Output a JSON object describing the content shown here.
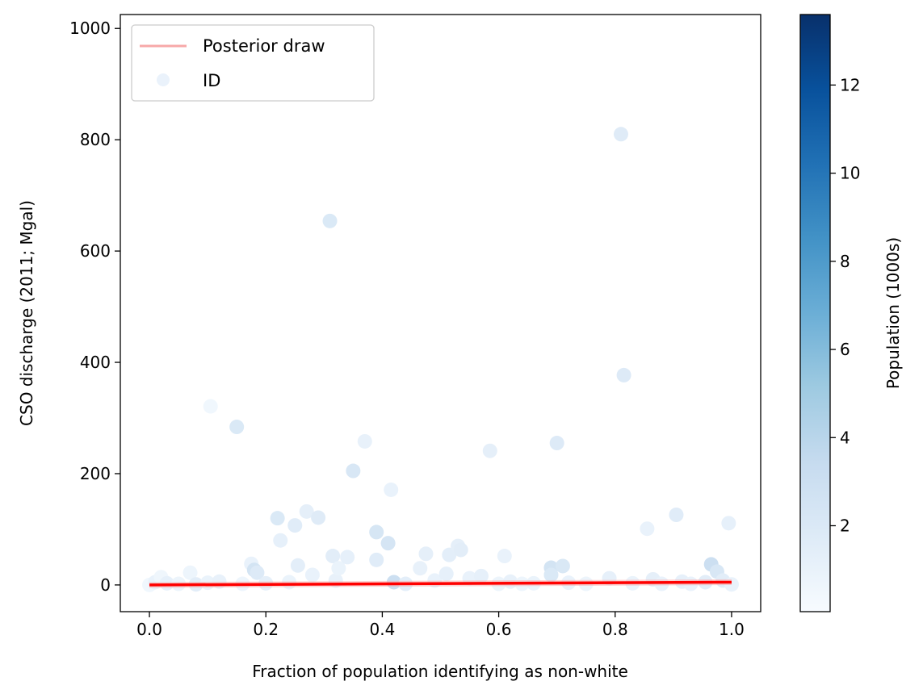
{
  "chart_data": {
    "type": "scatter",
    "title": "",
    "xlabel": "Fraction of population identifying as non-white",
    "ylabel": "CSO discharge (2011; Mgal)",
    "xlim": [
      -0.05,
      1.05
    ],
    "ylim": [
      -48,
      1025
    ],
    "xticks": [
      0.0,
      0.2,
      0.4,
      0.6,
      0.8,
      1.0
    ],
    "xtick_labels": [
      "0.0",
      "0.2",
      "0.4",
      "0.6",
      "0.8",
      "1.0"
    ],
    "yticks": [
      0,
      200,
      400,
      600,
      800,
      1000
    ],
    "ytick_labels": [
      "0",
      "200",
      "400",
      "600",
      "800",
      "1000"
    ],
    "grid": false,
    "legend": {
      "placement": "top-left",
      "entries": [
        {
          "label": "Posterior draw",
          "type": "line",
          "color": "#f7a8a8"
        },
        {
          "label": "ID",
          "type": "marker",
          "color": "#eaf2fb"
        }
      ]
    },
    "colorbar": {
      "label": "Population (1000s)",
      "range": [
        0.05,
        13.6
      ],
      "ticks": [
        2,
        4,
        6,
        8,
        10,
        12
      ],
      "tick_labels": [
        "2",
        "4",
        "6",
        "8",
        "10",
        "12"
      ],
      "colormap": "Blues",
      "colors": [
        "#f7fbff",
        "#deebf7",
        "#c6dbef",
        "#9ecae1",
        "#6baed6",
        "#4292c6",
        "#2171b5",
        "#08519c",
        "#08306b"
      ]
    },
    "posterior_line": {
      "color": "#ff0000",
      "x": [
        0.0,
        1.0
      ],
      "y": [
        0,
        5
      ]
    },
    "points": [
      {
        "x": 0.0,
        "y": 0,
        "pop": 0.5
      },
      {
        "x": 0.01,
        "y": 5,
        "pop": 1.0
      },
      {
        "x": 0.02,
        "y": 14,
        "pop": 0.6
      },
      {
        "x": 0.03,
        "y": 3,
        "pop": 1.2
      },
      {
        "x": 0.05,
        "y": 2,
        "pop": 0.8
      },
      {
        "x": 0.07,
        "y": 22,
        "pop": 0.7
      },
      {
        "x": 0.08,
        "y": 1,
        "pop": 1.5
      },
      {
        "x": 0.1,
        "y": 4,
        "pop": 0.9
      },
      {
        "x": 0.105,
        "y": 321,
        "pop": 0.5
      },
      {
        "x": 0.12,
        "y": 6,
        "pop": 1.1
      },
      {
        "x": 0.15,
        "y": 284,
        "pop": 2.0
      },
      {
        "x": 0.16,
        "y": 2,
        "pop": 0.7
      },
      {
        "x": 0.175,
        "y": 38,
        "pop": 1.0
      },
      {
        "x": 0.18,
        "y": 27,
        "pop": 2.5
      },
      {
        "x": 0.185,
        "y": 22,
        "pop": 1.8
      },
      {
        "x": 0.2,
        "y": 3,
        "pop": 1.3
      },
      {
        "x": 0.22,
        "y": 120,
        "pop": 2.0
      },
      {
        "x": 0.225,
        "y": 80,
        "pop": 1.2
      },
      {
        "x": 0.24,
        "y": 5,
        "pop": 0.9
      },
      {
        "x": 0.25,
        "y": 107,
        "pop": 1.6
      },
      {
        "x": 0.255,
        "y": 35,
        "pop": 1.4
      },
      {
        "x": 0.27,
        "y": 132,
        "pop": 1.3
      },
      {
        "x": 0.28,
        "y": 18,
        "pop": 1.0
      },
      {
        "x": 0.29,
        "y": 121,
        "pop": 1.7
      },
      {
        "x": 0.31,
        "y": 654,
        "pop": 2.0
      },
      {
        "x": 0.315,
        "y": 52,
        "pop": 1.5
      },
      {
        "x": 0.32,
        "y": 8,
        "pop": 1.1
      },
      {
        "x": 0.325,
        "y": 30,
        "pop": 0.9
      },
      {
        "x": 0.34,
        "y": 50,
        "pop": 1.2
      },
      {
        "x": 0.35,
        "y": 205,
        "pop": 2.2
      },
      {
        "x": 0.37,
        "y": 258,
        "pop": 1.1
      },
      {
        "x": 0.39,
        "y": 95,
        "pop": 2.3
      },
      {
        "x": 0.39,
        "y": 45,
        "pop": 1.6
      },
      {
        "x": 0.41,
        "y": 75,
        "pop": 2.4
      },
      {
        "x": 0.415,
        "y": 171,
        "pop": 1.0
      },
      {
        "x": 0.42,
        "y": 5,
        "pop": 3.0
      },
      {
        "x": 0.44,
        "y": 2,
        "pop": 1.4
      },
      {
        "x": 0.465,
        "y": 30,
        "pop": 1.1
      },
      {
        "x": 0.475,
        "y": 56,
        "pop": 1.3
      },
      {
        "x": 0.49,
        "y": 8,
        "pop": 1.0
      },
      {
        "x": 0.51,
        "y": 20,
        "pop": 1.2
      },
      {
        "x": 0.515,
        "y": 54,
        "pop": 1.4
      },
      {
        "x": 0.53,
        "y": 70,
        "pop": 1.3
      },
      {
        "x": 0.535,
        "y": 63,
        "pop": 1.5
      },
      {
        "x": 0.55,
        "y": 12,
        "pop": 1.0
      },
      {
        "x": 0.57,
        "y": 16,
        "pop": 1.2
      },
      {
        "x": 0.585,
        "y": 241,
        "pop": 1.3
      },
      {
        "x": 0.6,
        "y": 2,
        "pop": 0.8
      },
      {
        "x": 0.61,
        "y": 52,
        "pop": 1.0
      },
      {
        "x": 0.62,
        "y": 6,
        "pop": 1.1
      },
      {
        "x": 0.64,
        "y": 2,
        "pop": 0.7
      },
      {
        "x": 0.66,
        "y": 3,
        "pop": 0.9
      },
      {
        "x": 0.69,
        "y": 31,
        "pop": 2.5
      },
      {
        "x": 0.69,
        "y": 18,
        "pop": 2.0
      },
      {
        "x": 0.7,
        "y": 255,
        "pop": 1.8
      },
      {
        "x": 0.71,
        "y": 34,
        "pop": 2.1
      },
      {
        "x": 0.72,
        "y": 4,
        "pop": 1.0
      },
      {
        "x": 0.75,
        "y": 2,
        "pop": 0.8
      },
      {
        "x": 0.79,
        "y": 12,
        "pop": 1.2
      },
      {
        "x": 0.81,
        "y": 810,
        "pop": 1.7
      },
      {
        "x": 0.815,
        "y": 377,
        "pop": 1.8
      },
      {
        "x": 0.83,
        "y": 3,
        "pop": 0.9
      },
      {
        "x": 0.855,
        "y": 101,
        "pop": 1.0
      },
      {
        "x": 0.865,
        "y": 10,
        "pop": 1.3
      },
      {
        "x": 0.88,
        "y": 2,
        "pop": 1.0
      },
      {
        "x": 0.905,
        "y": 126,
        "pop": 1.6
      },
      {
        "x": 0.915,
        "y": 6,
        "pop": 1.2
      },
      {
        "x": 0.93,
        "y": 2,
        "pop": 1.0
      },
      {
        "x": 0.955,
        "y": 5,
        "pop": 1.5
      },
      {
        "x": 0.965,
        "y": 37,
        "pop": 3.0
      },
      {
        "x": 0.975,
        "y": 24,
        "pop": 2.2
      },
      {
        "x": 0.985,
        "y": 8,
        "pop": 1.5
      },
      {
        "x": 0.995,
        "y": 111,
        "pop": 1.2
      },
      {
        "x": 1.0,
        "y": 1,
        "pop": 1.0
      }
    ]
  }
}
